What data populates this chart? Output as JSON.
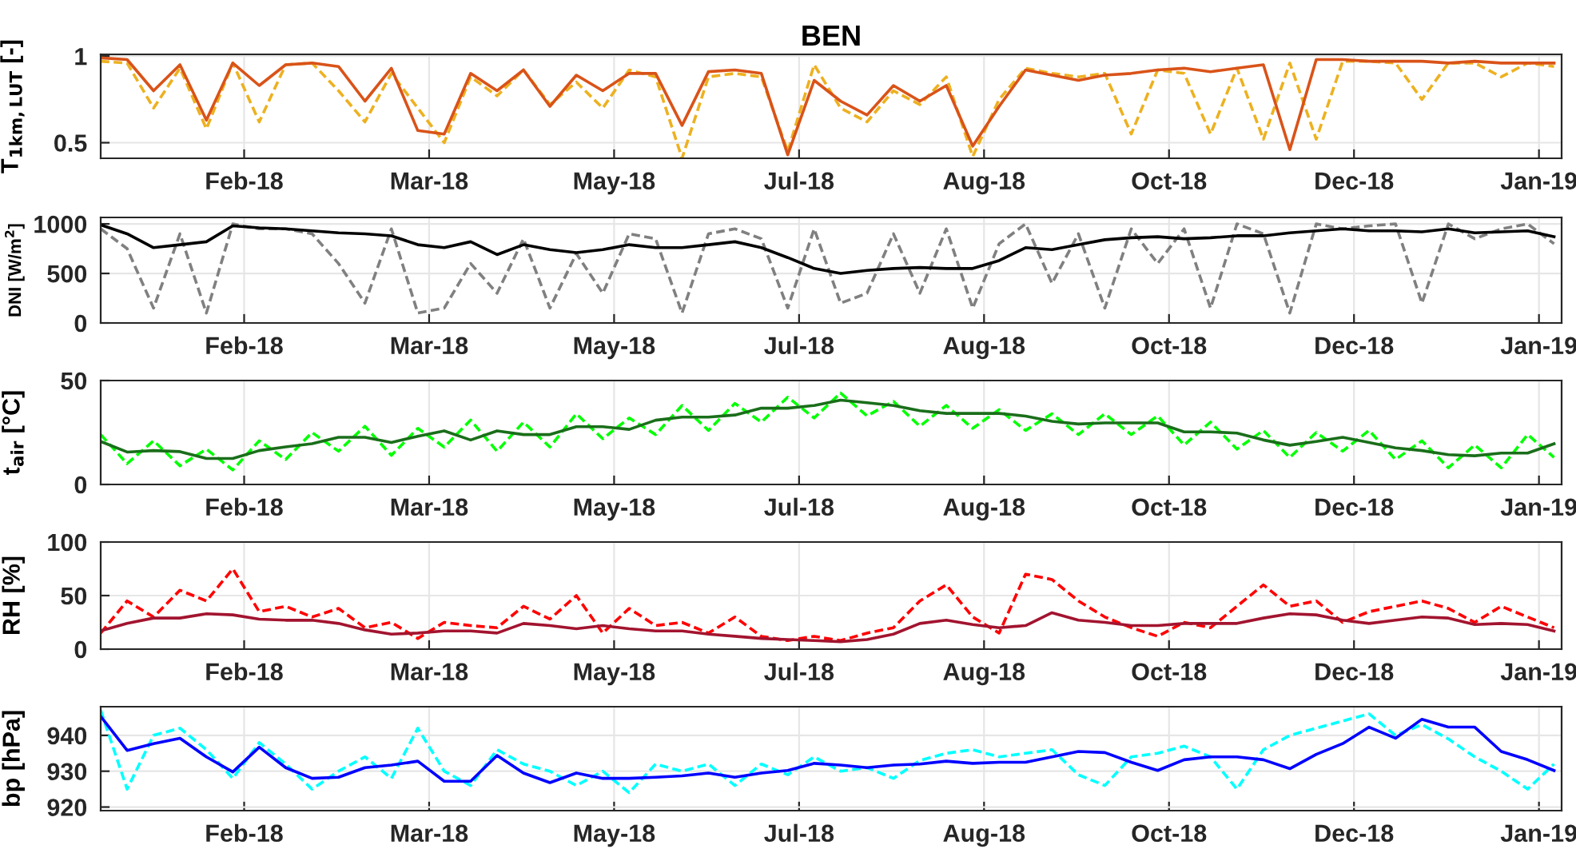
{
  "chart_data": [
    {
      "type": "line",
      "title": "BEN",
      "ylabel": "T$_{1km,LUT}$ [-]",
      "xlim": [
        "2018-01-03",
        "2019-01-25"
      ],
      "ylim": [
        0.41,
        1.01
      ],
      "yticks": [
        0.5,
        1
      ],
      "xticks": [
        {
          "value": "2018-02-10",
          "label": "Feb-18"
        },
        {
          "value": "2018-03-31",
          "label": "Mar-18"
        },
        {
          "value": "2018-05-19",
          "label": "May-18"
        },
        {
          "value": "2018-07-07",
          "label": "Jul-18"
        },
        {
          "value": "2018-08-25",
          "label": "Aug-18"
        },
        {
          "value": "2018-10-13",
          "label": "Oct-18"
        },
        {
          "value": "2018-12-01",
          "label": "Dec-18"
        },
        {
          "value": "2019-01-19",
          "label": "Jan-19"
        }
      ],
      "grid": true,
      "x": [
        "2018-01-03",
        "2018-01-10",
        "2018-01-17",
        "2018-01-24",
        "2018-01-31",
        "2018-02-07",
        "2018-02-14",
        "2018-02-21",
        "2018-02-28",
        "2018-03-07",
        "2018-03-14",
        "2018-03-21",
        "2018-03-28",
        "2018-04-04",
        "2018-04-11",
        "2018-04-18",
        "2018-04-25",
        "2018-05-02",
        "2018-05-09",
        "2018-05-16",
        "2018-05-23",
        "2018-05-30",
        "2018-06-06",
        "2018-06-13",
        "2018-06-20",
        "2018-06-27",
        "2018-07-04",
        "2018-07-11",
        "2018-07-18",
        "2018-07-25",
        "2018-08-01",
        "2018-08-08",
        "2018-08-15",
        "2018-08-22",
        "2018-08-29",
        "2018-09-05",
        "2018-09-12",
        "2018-09-19",
        "2018-09-26",
        "2018-10-03",
        "2018-10-10",
        "2018-10-17",
        "2018-10-24",
        "2018-10-31",
        "2018-11-07",
        "2018-11-14",
        "2018-11-21",
        "2018-11-28",
        "2018-12-05",
        "2018-12-12",
        "2018-12-19",
        "2018-12-26",
        "2019-01-02",
        "2019-01-09",
        "2019-01-16",
        "2019-01-23"
      ],
      "series": [
        {
          "color": "#edb120",
          "line_style": "dashed",
          "values": [
            0.97,
            0.96,
            0.7,
            0.93,
            0.58,
            0.96,
            0.62,
            0.95,
            0.96,
            0.8,
            0.62,
            0.9,
            0.7,
            0.5,
            0.88,
            0.77,
            0.92,
            0.72,
            0.85,
            0.7,
            0.92,
            0.88,
            0.41,
            0.88,
            0.9,
            0.88,
            0.45,
            0.95,
            0.7,
            0.62,
            0.8,
            0.72,
            0.88,
            0.42,
            0.75,
            0.93,
            0.9,
            0.88,
            0.9,
            0.55,
            0.92,
            0.9,
            0.55,
            0.93,
            0.52,
            0.96,
            0.52,
            0.97,
            0.97,
            0.96,
            0.75,
            0.96,
            0.96,
            0.88,
            0.96,
            0.94
          ]
        },
        {
          "color": "#d95319",
          "line_style": "solid",
          "values": [
            0.99,
            0.98,
            0.8,
            0.95,
            0.63,
            0.96,
            0.83,
            0.95,
            0.96,
            0.94,
            0.74,
            0.93,
            0.57,
            0.55,
            0.9,
            0.8,
            0.92,
            0.71,
            0.89,
            0.8,
            0.9,
            0.9,
            0.6,
            0.91,
            0.92,
            0.9,
            0.43,
            0.86,
            0.74,
            0.66,
            0.83,
            0.74,
            0.83,
            0.48,
            0.71,
            0.92,
            0.89,
            0.86,
            0.89,
            0.9,
            0.92,
            0.93,
            0.91,
            0.93,
            0.95,
            0.46,
            0.98,
            0.98,
            0.97,
            0.97,
            0.97,
            0.96,
            0.97,
            0.96,
            0.96,
            0.96
          ]
        }
      ]
    },
    {
      "type": "line",
      "ylabel": "DNI [W/m$^{2}$]",
      "xlim": [
        "2018-01-03",
        "2019-01-25"
      ],
      "ylim": [
        0,
        1065
      ],
      "yticks": [
        0,
        500,
        1000
      ],
      "xticks": [
        {
          "value": "2018-02-10",
          "label": "Feb-18"
        },
        {
          "value": "2018-03-31",
          "label": "Mar-18"
        },
        {
          "value": "2018-05-19",
          "label": "May-18"
        },
        {
          "value": "2018-07-07",
          "label": "Jul-18"
        },
        {
          "value": "2018-08-25",
          "label": "Aug-18"
        },
        {
          "value": "2018-10-13",
          "label": "Oct-18"
        },
        {
          "value": "2018-12-01",
          "label": "Dec-18"
        },
        {
          "value": "2019-01-19",
          "label": "Jan-19"
        }
      ],
      "grid": true,
      "x": [
        "2018-01-03",
        "2018-01-10",
        "2018-01-17",
        "2018-01-24",
        "2018-01-31",
        "2018-02-07",
        "2018-02-14",
        "2018-02-21",
        "2018-02-28",
        "2018-03-07",
        "2018-03-14",
        "2018-03-21",
        "2018-03-28",
        "2018-04-04",
        "2018-04-11",
        "2018-04-18",
        "2018-04-25",
        "2018-05-02",
        "2018-05-09",
        "2018-05-16",
        "2018-05-23",
        "2018-05-30",
        "2018-06-06",
        "2018-06-13",
        "2018-06-20",
        "2018-06-27",
        "2018-07-04",
        "2018-07-11",
        "2018-07-18",
        "2018-07-25",
        "2018-08-01",
        "2018-08-08",
        "2018-08-15",
        "2018-08-22",
        "2018-08-29",
        "2018-09-05",
        "2018-09-12",
        "2018-09-19",
        "2018-09-26",
        "2018-10-03",
        "2018-10-10",
        "2018-10-17",
        "2018-10-24",
        "2018-10-31",
        "2018-11-07",
        "2018-11-14",
        "2018-11-21",
        "2018-11-28",
        "2018-12-05",
        "2018-12-12",
        "2018-12-19",
        "2018-12-26",
        "2019-01-02",
        "2019-01-09",
        "2019-01-16",
        "2019-01-23"
      ],
      "series": [
        {
          "color": "#808080",
          "line_style": "dashed",
          "values": [
            950,
            750,
            150,
            900,
            100,
            1000,
            950,
            950,
            900,
            600,
            200,
            950,
            100,
            150,
            600,
            300,
            850,
            150,
            700,
            300,
            900,
            850,
            100,
            900,
            950,
            850,
            150,
            950,
            200,
            300,
            900,
            300,
            950,
            150,
            800,
            1000,
            400,
            900,
            150,
            950,
            600,
            950,
            150,
            1000,
            900,
            100,
            1000,
            950,
            980,
            1000,
            200,
            1000,
            850,
            950,
            1000,
            800
          ]
        },
        {
          "color": "#000000",
          "line_style": "solid",
          "values": [
            990,
            900,
            760,
            790,
            820,
            980,
            960,
            950,
            930,
            910,
            900,
            880,
            790,
            760,
            820,
            690,
            790,
            740,
            710,
            740,
            790,
            760,
            760,
            790,
            820,
            760,
            660,
            550,
            500,
            530,
            550,
            560,
            550,
            550,
            630,
            760,
            740,
            790,
            840,
            860,
            870,
            850,
            860,
            880,
            880,
            910,
            930,
            950,
            930,
            930,
            920,
            950,
            910,
            920,
            930,
            870
          ]
        }
      ]
    },
    {
      "type": "line",
      "ylabel": "t$_{air}$ [°C]",
      "xlim": [
        "2018-01-03",
        "2019-01-25"
      ],
      "ylim": [
        0,
        50
      ],
      "yticks": [
        0,
        50
      ],
      "xticks": [
        {
          "value": "2018-02-10",
          "label": "Feb-18"
        },
        {
          "value": "2018-03-31",
          "label": "Mar-18"
        },
        {
          "value": "2018-05-19",
          "label": "May-18"
        },
        {
          "value": "2018-07-07",
          "label": "Jul-18"
        },
        {
          "value": "2018-08-25",
          "label": "Aug-18"
        },
        {
          "value": "2018-10-13",
          "label": "Oct-18"
        },
        {
          "value": "2018-12-01",
          "label": "Dec-18"
        },
        {
          "value": "2019-01-19",
          "label": "Jan-19"
        }
      ],
      "grid": true,
      "x": [
        "2018-01-03",
        "2018-01-10",
        "2018-01-17",
        "2018-01-24",
        "2018-01-31",
        "2018-02-07",
        "2018-02-14",
        "2018-02-21",
        "2018-02-28",
        "2018-03-07",
        "2018-03-14",
        "2018-03-21",
        "2018-03-28",
        "2018-04-04",
        "2018-04-11",
        "2018-04-18",
        "2018-04-25",
        "2018-05-02",
        "2018-05-09",
        "2018-05-16",
        "2018-05-23",
        "2018-05-30",
        "2018-06-06",
        "2018-06-13",
        "2018-06-20",
        "2018-06-27",
        "2018-07-04",
        "2018-07-11",
        "2018-07-18",
        "2018-07-25",
        "2018-08-01",
        "2018-08-08",
        "2018-08-15",
        "2018-08-22",
        "2018-08-29",
        "2018-09-05",
        "2018-09-12",
        "2018-09-19",
        "2018-09-26",
        "2018-10-03",
        "2018-10-10",
        "2018-10-17",
        "2018-10-24",
        "2018-10-31",
        "2018-11-07",
        "2018-11-14",
        "2018-11-21",
        "2018-11-28",
        "2018-12-05",
        "2018-12-12",
        "2018-12-19",
        "2018-12-26",
        "2019-01-02",
        "2019-01-09",
        "2019-01-16",
        "2019-01-23"
      ],
      "series": [
        {
          "color": "#00ff00",
          "line_style": "dashed",
          "values": [
            24,
            10,
            21,
            9,
            17,
            7,
            21,
            12,
            25,
            16,
            28,
            14,
            27,
            18,
            31,
            16,
            30,
            18,
            34,
            22,
            32,
            24,
            38,
            26,
            39,
            30,
            42,
            32,
            44,
            33,
            40,
            28,
            38,
            27,
            36,
            26,
            34,
            24,
            34,
            24,
            33,
            19,
            30,
            17,
            26,
            13,
            25,
            16,
            26,
            12,
            21,
            8,
            19,
            8,
            24,
            13
          ]
        },
        {
          "color": "#1a6e1a",
          "line_style": "solid",
          "values": [
            20.7,
            15.6,
            16.3,
            15.8,
            12.5,
            12.5,
            16.3,
            18.1,
            19.6,
            22.7,
            22.7,
            20.2,
            23.2,
            25.8,
            21.4,
            25.8,
            24.0,
            24.0,
            27.8,
            27.8,
            26.5,
            30.9,
            32.4,
            32.4,
            33.4,
            36.7,
            36.7,
            38.0,
            40.6,
            39.3,
            38.0,
            35.5,
            34.2,
            34.2,
            34.2,
            32.9,
            30.4,
            29.1,
            29.6,
            29.6,
            29.6,
            25.3,
            25.3,
            24.7,
            21.4,
            18.9,
            20.7,
            22.7,
            20.2,
            17.6,
            16.3,
            14.3,
            13.8,
            15.1,
            15.1,
            19.6
          ]
        }
      ]
    },
    {
      "type": "line",
      "ylabel": "RH [%]",
      "xlim": [
        "2018-01-03",
        "2019-01-25"
      ],
      "ylim": [
        0,
        100
      ],
      "yticks": [
        0,
        50,
        100
      ],
      "xticks": [
        {
          "value": "2018-02-10",
          "label": "Feb-18"
        },
        {
          "value": "2018-03-31",
          "label": "Mar-18"
        },
        {
          "value": "2018-05-19",
          "label": "May-18"
        },
        {
          "value": "2018-07-07",
          "label": "Jul-18"
        },
        {
          "value": "2018-08-25",
          "label": "Aug-18"
        },
        {
          "value": "2018-10-13",
          "label": "Oct-18"
        },
        {
          "value": "2018-12-01",
          "label": "Dec-18"
        },
        {
          "value": "2019-01-19",
          "label": "Jan-19"
        }
      ],
      "grid": true,
      "x": [
        "2018-01-03",
        "2018-01-10",
        "2018-01-17",
        "2018-01-24",
        "2018-01-31",
        "2018-02-07",
        "2018-02-14",
        "2018-02-21",
        "2018-02-28",
        "2018-03-07",
        "2018-03-14",
        "2018-03-21",
        "2018-03-28",
        "2018-04-04",
        "2018-04-11",
        "2018-04-18",
        "2018-04-25",
        "2018-05-02",
        "2018-05-09",
        "2018-05-16",
        "2018-05-23",
        "2018-05-30",
        "2018-06-06",
        "2018-06-13",
        "2018-06-20",
        "2018-06-27",
        "2018-07-04",
        "2018-07-11",
        "2018-07-18",
        "2018-07-25",
        "2018-08-01",
        "2018-08-08",
        "2018-08-15",
        "2018-08-22",
        "2018-08-29",
        "2018-09-05",
        "2018-09-12",
        "2018-09-19",
        "2018-09-26",
        "2018-10-03",
        "2018-10-10",
        "2018-10-17",
        "2018-10-24",
        "2018-10-31",
        "2018-11-07",
        "2018-11-14",
        "2018-11-21",
        "2018-11-28",
        "2018-12-05",
        "2018-12-12",
        "2018-12-19",
        "2018-12-26",
        "2019-01-02",
        "2019-01-09",
        "2019-01-16",
        "2019-01-23"
      ],
      "series": [
        {
          "color": "#ff0000",
          "line_style": "dashed",
          "values": [
            15,
            45,
            30,
            55,
            45,
            75,
            35,
            40,
            30,
            38,
            20,
            25,
            10,
            25,
            22,
            20,
            40,
            28,
            50,
            15,
            38,
            22,
            25,
            15,
            30,
            12,
            8,
            12,
            8,
            15,
            20,
            45,
            60,
            30,
            15,
            70,
            65,
            45,
            30,
            20,
            12,
            25,
            20,
            40,
            60,
            40,
            45,
            25,
            35,
            40,
            45,
            38,
            25,
            40,
            30,
            20
          ]
        },
        {
          "color": "#a2142f",
          "line_style": "solid",
          "values": [
            17,
            24,
            29,
            29,
            33,
            32,
            28,
            27,
            27,
            24,
            18,
            14,
            15,
            17,
            17,
            15,
            24,
            22,
            19,
            22,
            19,
            17,
            17,
            14,
            12,
            10,
            9,
            8,
            7,
            9,
            14,
            24,
            27,
            23,
            20,
            22,
            34,
            27,
            25,
            22,
            22,
            24,
            24,
            24,
            29,
            33,
            32,
            27,
            24,
            27,
            30,
            29,
            23,
            24,
            23,
            17
          ]
        }
      ]
    },
    {
      "type": "line",
      "ylabel": "bp [hPa]",
      "xlim": [
        "2018-01-03",
        "2019-01-25"
      ],
      "ylim": [
        919,
        948
      ],
      "yticks": [
        920,
        930,
        940
      ],
      "xticks": [
        {
          "value": "2018-02-10",
          "label": "Feb-18"
        },
        {
          "value": "2018-03-31",
          "label": "Mar-18"
        },
        {
          "value": "2018-05-19",
          "label": "May-18"
        },
        {
          "value": "2018-07-07",
          "label": "Jul-18"
        },
        {
          "value": "2018-08-25",
          "label": "Aug-18"
        },
        {
          "value": "2018-10-13",
          "label": "Oct-18"
        },
        {
          "value": "2018-12-01",
          "label": "Dec-18"
        },
        {
          "value": "2019-01-19",
          "label": "Jan-19"
        }
      ],
      "grid": true,
      "x": [
        "2018-01-03",
        "2018-01-10",
        "2018-01-17",
        "2018-01-24",
        "2018-01-31",
        "2018-02-07",
        "2018-02-14",
        "2018-02-21",
        "2018-02-28",
        "2018-03-07",
        "2018-03-14",
        "2018-03-21",
        "2018-03-28",
        "2018-04-04",
        "2018-04-11",
        "2018-04-18",
        "2018-04-25",
        "2018-05-02",
        "2018-05-09",
        "2018-05-16",
        "2018-05-23",
        "2018-05-30",
        "2018-06-06",
        "2018-06-13",
        "2018-06-20",
        "2018-06-27",
        "2018-07-04",
        "2018-07-11",
        "2018-07-18",
        "2018-07-25",
        "2018-08-01",
        "2018-08-08",
        "2018-08-15",
        "2018-08-22",
        "2018-08-29",
        "2018-09-05",
        "2018-09-12",
        "2018-09-19",
        "2018-09-26",
        "2018-10-03",
        "2018-10-10",
        "2018-10-17",
        "2018-10-24",
        "2018-10-31",
        "2018-11-07",
        "2018-11-14",
        "2018-11-21",
        "2018-11-28",
        "2018-12-05",
        "2018-12-12",
        "2018-12-19",
        "2018-12-26",
        "2019-01-02",
        "2019-01-09",
        "2019-01-16",
        "2019-01-23"
      ],
      "series": [
        {
          "color": "#00ffff",
          "line_style": "dashed",
          "values": [
            947,
            925,
            940,
            942,
            936,
            928,
            938,
            932,
            925,
            930,
            934,
            928,
            942,
            930,
            926,
            936,
            932,
            930,
            926,
            930,
            924,
            932,
            930,
            932,
            926,
            932,
            929,
            934,
            930,
            931,
            928,
            933,
            935,
            936,
            934,
            935,
            936,
            929,
            926,
            934,
            935,
            937,
            934,
            925,
            936,
            940,
            942,
            944,
            946,
            940,
            943,
            939,
            934,
            930,
            925,
            932
          ]
        },
        {
          "color": "#0000ff",
          "line_style": "solid",
          "values": [
            945.3,
            935.8,
            937.7,
            939.2,
            934.0,
            929.8,
            936.7,
            931.0,
            928.0,
            928.3,
            931.0,
            931.7,
            932.8,
            927.2,
            927.2,
            934.4,
            929.5,
            926.8,
            929.5,
            928.0,
            928.0,
            928.3,
            928.7,
            929.5,
            928.3,
            929.5,
            930.2,
            932.2,
            931.7,
            931.0,
            931.7,
            932.0,
            932.8,
            932.2,
            932.5,
            932.5,
            934.0,
            935.5,
            935.2,
            932.5,
            930.2,
            933.2,
            934.0,
            934.0,
            933.2,
            930.7,
            934.7,
            937.7,
            942.3,
            939.2,
            944.5,
            942.3,
            942.3,
            935.5,
            933.2,
            930.2
          ]
        }
      ]
    }
  ]
}
